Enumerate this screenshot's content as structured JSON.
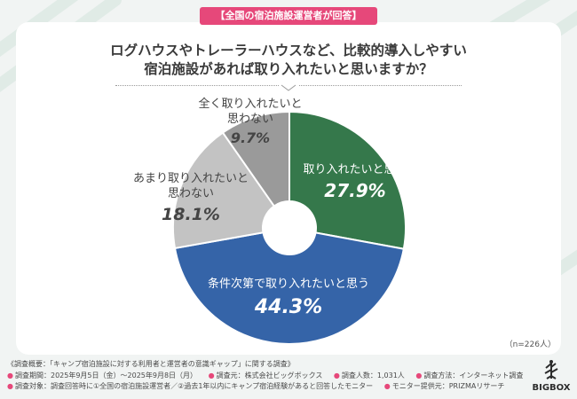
{
  "header": {
    "badge": "【全国の宿泊施設運営者が回答】",
    "question_line1": "ログハウスやトレーラーハウスなど、比較的導入しやすい",
    "question_line2": "宿泊施設があれば取り入れたいと思いますか？"
  },
  "chart_data": {
    "type": "pie",
    "title": "ログハウスやトレーラーハウスなど、比較的導入しやすい宿泊施設があれば取り入れたいと思いますか？",
    "donut": true,
    "start": "12 o'clock",
    "direction": "clockwise",
    "slices": [
      {
        "label_lines": [
          "取り入れたいと思う"
        ],
        "value": 27.9,
        "display": "27.9%",
        "color": "#35784b"
      },
      {
        "label_lines": [
          "条件次第で取り入れたいと思う"
        ],
        "value": 44.3,
        "display": "44.3%",
        "color": "#3564a8"
      },
      {
        "label_lines": [
          "あまり取り入れたいと",
          "思わない"
        ],
        "value": 18.1,
        "display": "18.1%",
        "color": "#c3c3c3"
      },
      {
        "label_lines": [
          "全く取り入れたいと",
          "思わない"
        ],
        "value": 9.7,
        "display": "9.7%",
        "color": "#9a9a9a"
      }
    ],
    "sample_size": "（n=226人）"
  },
  "footer": {
    "overview": "《調査概要：「キャンプ宿泊施設に対する利用者と運営者の意識ギャップ」に関する調査》",
    "period": "調査期間：2025年9月5日（金）～2025年9月8日（月）",
    "source": "調査元：株式会社ビッグボックス",
    "count": "調査人数：1,031人",
    "method": "調査方法：インターネット調査",
    "target": "調査対象：調査回答時に①全国の宿泊施設運営者／②過去1年以内にキャンプ宿泊経験があると回答したモニター",
    "provider": "モニター提供元：PRIZMAリサーチ",
    "bullet": "●"
  },
  "logo": {
    "text": "BIGBOX",
    "icon": "tree-icon"
  }
}
